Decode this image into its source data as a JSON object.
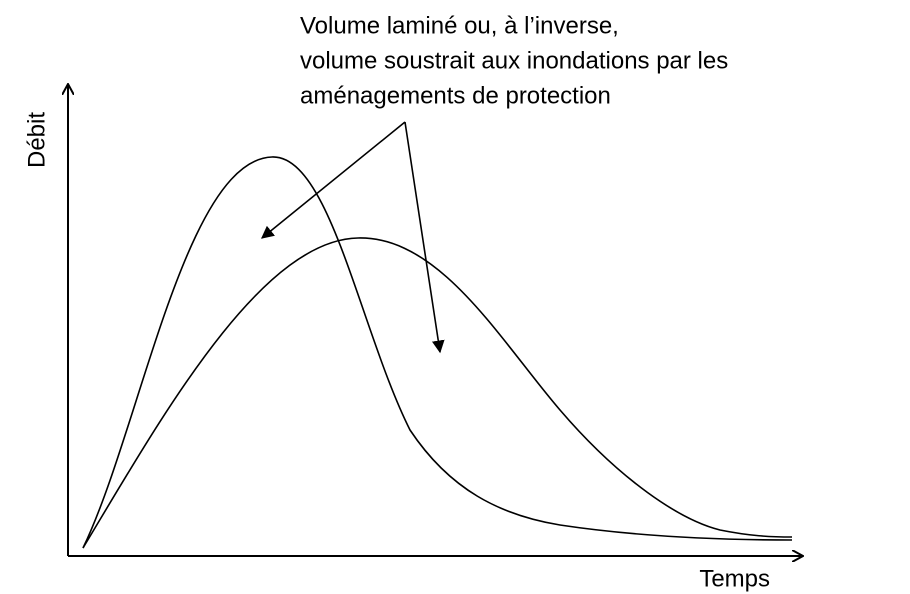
{
  "annotation": {
    "lines": [
      "Volume laminé ou, à l’inverse,",
      "volume soustrait aux inondations par les",
      "aménagements de protection"
    ]
  },
  "y_axis": {
    "label": "Débit"
  },
  "x_axis": {
    "label": "Temps"
  }
}
